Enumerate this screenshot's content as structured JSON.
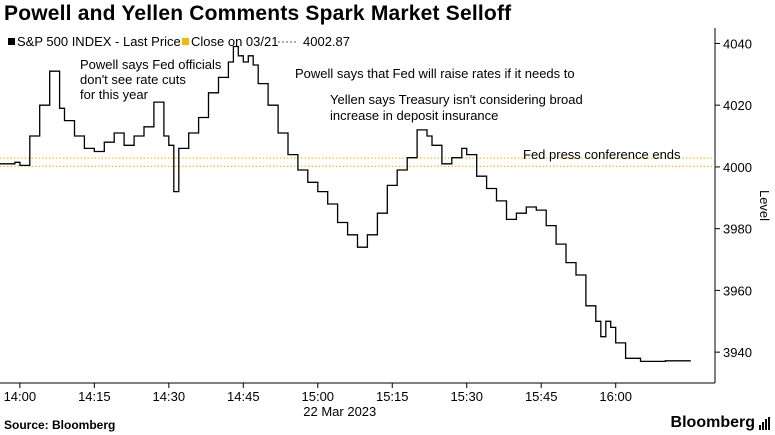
{
  "title": "Powell and Yellen Comments Spark Market Selloff",
  "source": "Source: Bloomberg",
  "brand": "Bloomberg",
  "colors": {
    "series": "#000000",
    "close_line": "#f5b800",
    "axis": "#000000",
    "background": "#ffffff"
  },
  "chart_data": {
    "type": "line",
    "title": "Powell and Yellen Comments Spark Market Selloff",
    "xlabel": "22 Mar 2023",
    "ylabel": "Level",
    "x_ticks": [
      "14:00",
      "14:15",
      "14:30",
      "14:45",
      "15:00",
      "15:15",
      "15:30",
      "15:45",
      "16:00"
    ],
    "y_ticks": [
      3940,
      3960,
      3980,
      4000,
      4020,
      4040
    ],
    "ylim": [
      3930,
      4045
    ],
    "xlim": [
      "13:56",
      "16:20"
    ],
    "grid": false,
    "legend_position": "top-left",
    "legend": [
      {
        "label": "S&P 500 INDEX - Last Price",
        "color": "#000000"
      },
      {
        "label": "Close on 03/21",
        "color": "#f5b800"
      },
      {
        "label": "4002.87",
        "color": "#f5b800"
      }
    ],
    "reference_lines": [
      {
        "name": "Close on 03/21",
        "value": 4002.87,
        "style": "dotted",
        "color": "#f5b800"
      },
      {
        "name": "Fed press conference ends",
        "value": 4000.2,
        "style": "dotted",
        "color": "#f5b800"
      }
    ],
    "series": [
      {
        "name": "S&P 500 INDEX - Last Price",
        "x": [
          "13:56",
          "13:59",
          "14:00",
          "14:02",
          "14:04",
          "14:06",
          "14:08",
          "14:09",
          "14:11",
          "14:13",
          "14:15",
          "14:17",
          "14:19",
          "14:21",
          "14:23",
          "14:25",
          "14:27",
          "14:29",
          "14:30",
          "14:31",
          "14:32",
          "14:34",
          "14:36",
          "14:38",
          "14:40",
          "14:42",
          "14:43",
          "14:44",
          "14:45",
          "14:46",
          "14:47",
          "14:48",
          "14:50",
          "14:52",
          "14:54",
          "14:56",
          "14:58",
          "15:00",
          "15:02",
          "15:04",
          "15:06",
          "15:08",
          "15:10",
          "15:12",
          "15:14",
          "15:16",
          "15:18",
          "15:20",
          "15:22",
          "15:23",
          "15:25",
          "15:27",
          "15:29",
          "15:30",
          "15:32",
          "15:34",
          "15:36",
          "15:38",
          "15:40",
          "15:42",
          "15:44",
          "15:46",
          "15:48",
          "15:50",
          "15:52",
          "15:54",
          "15:56",
          "15:57",
          "15:58",
          "15:59",
          "16:00",
          "16:02",
          "16:05",
          "16:10",
          "16:15"
        ],
        "y": [
          4001,
          4001.5,
          4000.5,
          4010,
          4020,
          4031,
          4019,
          4015,
          4010,
          4006,
          4005,
          4008,
          4011,
          4007,
          4010,
          4013,
          4021,
          4010,
          4007,
          3992,
          4006,
          4011,
          4016,
          4024,
          4029,
          4034,
          4039,
          4036,
          4034,
          4036,
          4033,
          4027,
          4020,
          4011,
          4004,
          3999,
          3995,
          3992,
          3988,
          3982,
          3978,
          3974,
          3978,
          3985,
          3994,
          3999,
          4003,
          4012,
          4010,
          4007,
          4001,
          4003,
          4006,
          4004,
          3997,
          3993,
          3989,
          3983,
          3985,
          3987,
          3986,
          3981,
          3975,
          3969,
          3965,
          3955,
          3950,
          3945,
          3950,
          3948,
          3943,
          3938,
          3937,
          3937.2,
          3937
        ]
      }
    ],
    "annotations": [
      {
        "text": "Powell says Fed officials don't see rate cuts for this year",
        "lines": [
          "Powell says Fed officials",
          "don't see rate cuts",
          "for this year"
        ]
      },
      {
        "text": "Powell says that Fed will raise rates if it needs to",
        "lines": [
          "Powell says that Fed will raise rates if it needs to"
        ]
      },
      {
        "text": "Yellen says Treasury isn't considering broad increase in deposit insurance",
        "lines": [
          "Yellen says Treasury isn't considering broad",
          "increase in deposit insurance"
        ]
      },
      {
        "text": "Fed press conference ends",
        "lines": [
          "Fed press conference ends"
        ]
      }
    ]
  }
}
